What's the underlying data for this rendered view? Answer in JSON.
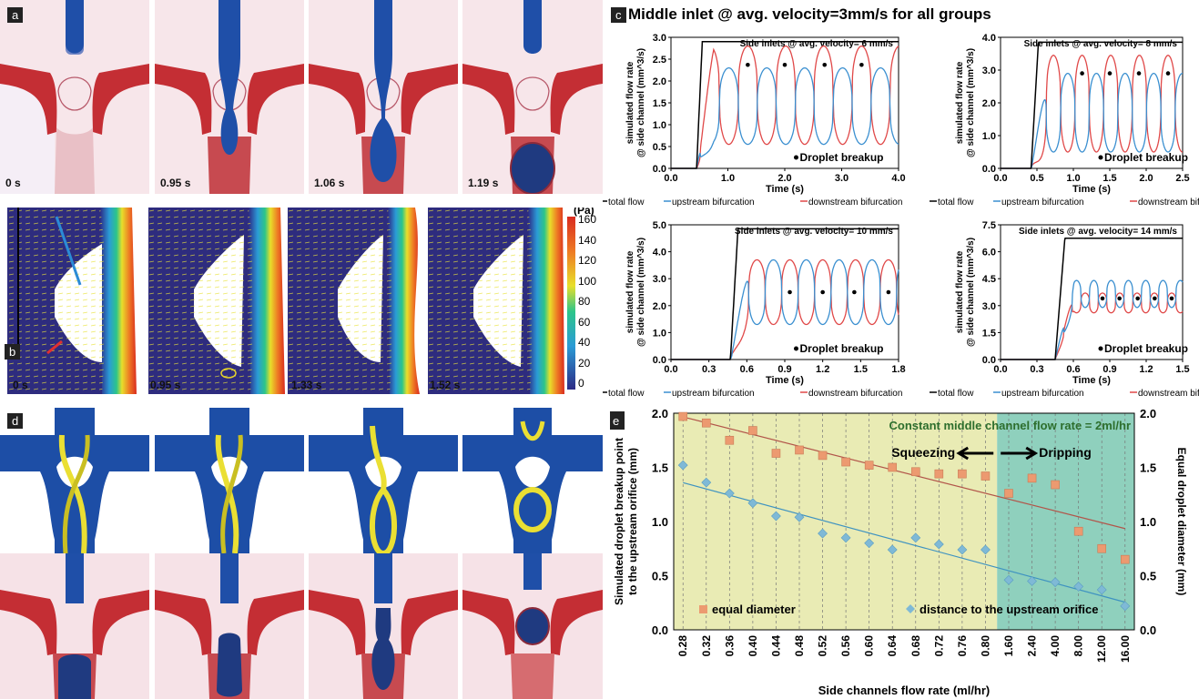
{
  "panels": {
    "a": {
      "label": "a",
      "times": [
        "0 s",
        "0.95 s",
        "1.06 s",
        "1.19 s"
      ]
    },
    "b": {
      "label": "b",
      "times": [
        "0 s",
        "0.95 s",
        "1.33 s",
        "1.52 s"
      ],
      "colorbar_unit": "(Pa)",
      "colorbar_ticks": [
        "160",
        "140",
        "120",
        "100",
        "80",
        "60",
        "40",
        "20",
        "0"
      ]
    },
    "d": {
      "label": "d"
    },
    "c": {
      "label": "c",
      "heading": "Middle inlet @ avg. velocity=3mm/s for all groups"
    },
    "e": {
      "label": "e"
    }
  },
  "colors": {
    "total": "#000000",
    "upstream": "#3a8fd0",
    "downstream": "#e04848",
    "blue_fluid": "#1f4fa8",
    "red_fluid": "#c93030",
    "yellow": "#e8dc2a",
    "e_left_bg": "#e9ebb4",
    "e_right_bg": "#8fd0bd",
    "square": "#ec9a70",
    "diamond": "#7fb9d6"
  },
  "chart_data": [
    {
      "type": "line",
      "title": "Side inlets @ avg. velocity= 6 mm/s",
      "xlabel": "Time (s)",
      "ylabel": "simulated flow rate @ side channel (mm^3/s)",
      "xlim": [
        0,
        4.0
      ],
      "ylim": [
        0,
        3.0
      ],
      "xticks": [
        "0.0",
        "1.0",
        "2.0",
        "3.0",
        "4.0"
      ],
      "yticks": [
        "0.0",
        "0.5",
        "1.0",
        "1.5",
        "2.0",
        "2.5",
        "3.0"
      ],
      "legend": [
        "total flow",
        "upstream bifurcation",
        "downstream bifurcation"
      ],
      "annotation": "Droplet breakup",
      "total_level": 2.9,
      "rise_start": 0.45,
      "rise_end": 0.55,
      "breakups_x": [
        1.35,
        2.0,
        2.7,
        3.35
      ],
      "breakup_y": 2.37,
      "up_high": 2.3,
      "up_low": 0.55,
      "down_high": 2.8,
      "down_low": 0.55
    },
    {
      "type": "line",
      "title": "Side inlets @ avg. velocity= 8 mm/s",
      "xlabel": "Time (s)",
      "ylabel": "simulated flow rate @ side channel (mm^3/s)",
      "xlim": [
        0,
        2.5
      ],
      "ylim": [
        0,
        4.0
      ],
      "xticks": [
        "0.0",
        "0.5",
        "1.0",
        "1.5",
        "2.0",
        "2.5"
      ],
      "yticks": [
        "0.0",
        "1.0",
        "2.0",
        "3.0",
        "4.0"
      ],
      "legend": [
        "total flow",
        "upstream bifurcation",
        "downstream bifurcation"
      ],
      "annotation": "Droplet breakup",
      "total_level": 3.85,
      "rise_start": 0.42,
      "rise_end": 0.52,
      "breakups_x": [
        1.12,
        1.5,
        1.9,
        2.3
      ],
      "breakup_y": 2.9,
      "up_high": 2.9,
      "up_low": 0.5,
      "down_high": 3.45,
      "down_low": 0.5
    },
    {
      "type": "line",
      "title": "Side inlets @ avg. velocity= 10 mm/s",
      "xlabel": "Time (s)",
      "ylabel": "simulated flow rate @ side channel (mm^3/s)",
      "xlim": [
        0,
        1.8
      ],
      "ylim": [
        0,
        5.0
      ],
      "xticks": [
        "0.0",
        "0.3",
        "0.6",
        "0.9",
        "1.2",
        "1.5",
        "1.8"
      ],
      "yticks": [
        "0.0",
        "1.0",
        "2.0",
        "3.0",
        "4.0",
        "5.0"
      ],
      "legend": [
        "total flow",
        "upstream bifurcation",
        "downstream bifurcation"
      ],
      "annotation": "Droplet breakup",
      "total_level": 4.85,
      "rise_start": 0.47,
      "rise_end": 0.53,
      "breakups_x": [
        0.94,
        1.2,
        1.45,
        1.72
      ],
      "breakup_y": 2.5,
      "up_high": 3.7,
      "up_low": 1.3,
      "down_high": 3.7,
      "down_low": 1.3
    },
    {
      "type": "line",
      "title": "Side inlets @ avg. velocity= 14 mm/s",
      "xlabel": "Time (s)",
      "ylabel": "simulated flow rate @ side channel (mm^3/s)",
      "xlim": [
        0,
        1.5
      ],
      "ylim": [
        0,
        7.5
      ],
      "xticks": [
        "0.0",
        "0.3",
        "0.6",
        "0.9",
        "1.2",
        "1.5"
      ],
      "yticks": [
        "0.0",
        "1.5",
        "3.0",
        "4.5",
        "6.0",
        "7.5"
      ],
      "legend": [
        "total flow",
        "upstream bifurcation",
        "downstream bifurcation"
      ],
      "annotation": "Droplet breakup",
      "total_level": 6.75,
      "rise_start": 0.45,
      "rise_end": 0.53,
      "breakups_x": [
        0.84,
        0.98,
        1.13,
        1.27,
        1.41
      ],
      "breakup_y": 3.4,
      "up_high": 4.4,
      "up_low": 2.9,
      "down_high": 3.7,
      "down_low": 2.6
    },
    {
      "type": "scatter",
      "title": "Constant middle channel flow rate = 2ml/hr",
      "xlabel": "Side channels flow rate (ml/hr)",
      "ylabel_left": "Simulated droplet breakup point to the upstream orifice (mm)",
      "ylabel_right": "Equal droplet diameter (mm)",
      "ylim": [
        0,
        2.0
      ],
      "yticks": [
        "0.0",
        "0.5",
        "1.0",
        "1.5",
        "2.0"
      ],
      "categories": [
        "0.28",
        "0.32",
        "0.36",
        "0.40",
        "0.44",
        "0.48",
        "0.52",
        "0.56",
        "0.60",
        "0.64",
        "0.68",
        "0.72",
        "0.76",
        "0.80",
        "1.60",
        "2.40",
        "4.00",
        "8.00",
        "12.00",
        "16.00"
      ],
      "regions": [
        "Squeezing",
        "Dripping"
      ],
      "series": [
        {
          "name": "equal diameter",
          "values": [
            1.97,
            1.91,
            1.75,
            1.84,
            1.63,
            1.66,
            1.61,
            1.55,
            1.52,
            1.5,
            1.46,
            1.44,
            1.44,
            1.42,
            1.26,
            1.4,
            1.34,
            0.91,
            0.75,
            0.65
          ]
        },
        {
          "name": "distance to the upstream orifice",
          "values": [
            1.52,
            1.36,
            1.26,
            1.17,
            1.05,
            1.04,
            0.89,
            0.85,
            0.8,
            0.74,
            0.85,
            0.79,
            0.74,
            0.74,
            0.46,
            0.45,
            0.44,
            0.4,
            0.37,
            0.22
          ]
        }
      ]
    }
  ]
}
